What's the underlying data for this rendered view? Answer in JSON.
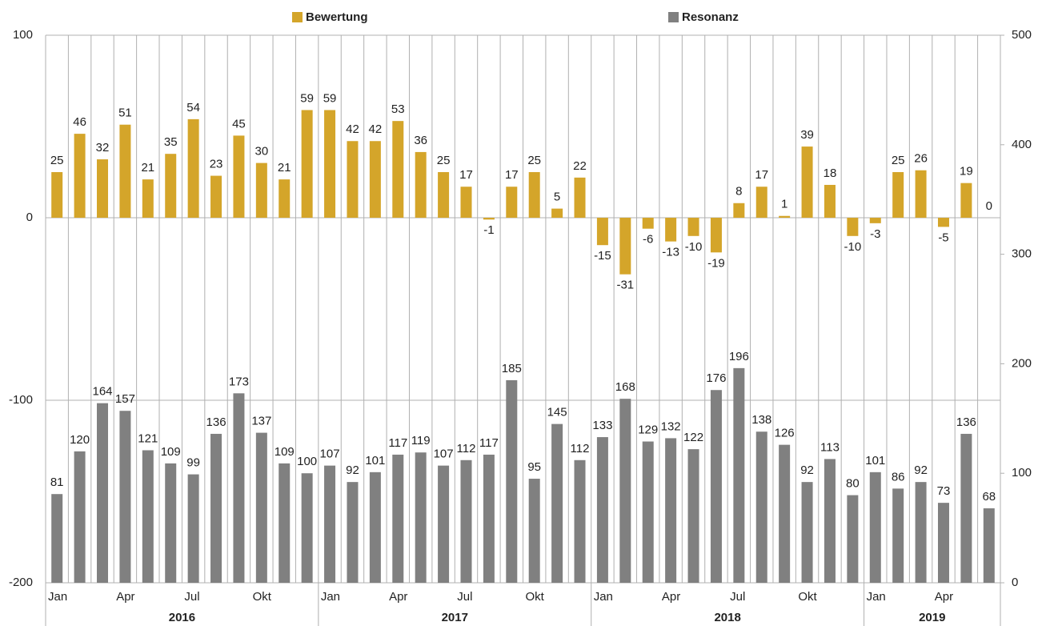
{
  "chart_data": {
    "type": "bar",
    "categories": [
      "Jan",
      null,
      null,
      "Apr",
      null,
      null,
      "Jul",
      null,
      null,
      "Okt",
      null,
      null,
      "Jan",
      null,
      null,
      "Apr",
      null,
      null,
      "Jul",
      null,
      null,
      "Okt",
      null,
      null,
      "Jan",
      null,
      null,
      "Apr",
      null,
      null,
      "Jul",
      null,
      null,
      "Okt",
      null,
      null,
      "Jan",
      null,
      null,
      "Apr",
      null,
      null
    ],
    "groups": [
      "2016",
      "2017",
      "2018",
      "2019"
    ],
    "group_sizes": [
      12,
      12,
      12,
      6
    ],
    "series": [
      {
        "name": "Bewertung",
        "color": "#d4a52a",
        "axis": "y",
        "values": [
          25,
          46,
          32,
          51,
          21,
          35,
          54,
          23,
          45,
          30,
          21,
          59,
          59,
          42,
          42,
          53,
          36,
          25,
          17,
          -1,
          17,
          25,
          5,
          22,
          -15,
          -31,
          -6,
          -13,
          -10,
          -19,
          8,
          17,
          1,
          39,
          18,
          -10,
          -3,
          25,
          26,
          -5,
          19,
          0
        ]
      },
      {
        "name": "Resonanz",
        "color": "#808080",
        "axis": "y2",
        "values": [
          81,
          120,
          164,
          157,
          121,
          109,
          99,
          136,
          173,
          137,
          109,
          100,
          107,
          92,
          101,
          117,
          119,
          107,
          112,
          117,
          185,
          95,
          145,
          112,
          133,
          168,
          129,
          132,
          122,
          176,
          196,
          138,
          126,
          92,
          113,
          80,
          101,
          86,
          92,
          73,
          136,
          68
        ]
      }
    ],
    "ylim": [
      -200,
      100
    ],
    "yticks": [
      -200,
      -100,
      0,
      100
    ],
    "y2lim": [
      0,
      500
    ],
    "y2ticks": [
      0,
      100,
      200,
      300,
      400,
      500
    ],
    "grid": true,
    "legend": "top"
  }
}
